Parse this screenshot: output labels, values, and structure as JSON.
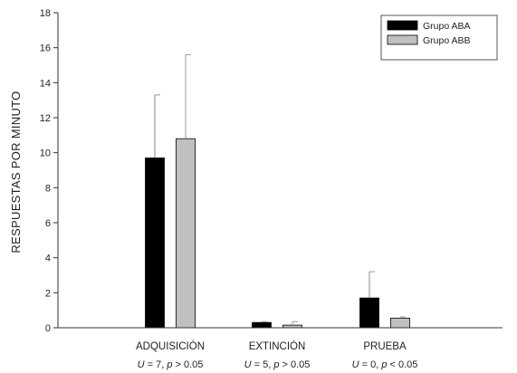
{
  "chart_data": {
    "type": "bar",
    "ylabel": "RESPUESTAS POR MINUTO",
    "ylim": [
      0,
      18
    ],
    "yticks": [
      0,
      2,
      4,
      6,
      8,
      10,
      12,
      14,
      16,
      18
    ],
    "categories": [
      "ADQUISICIÓN",
      "EXTINCIÓN",
      "PRUEBA"
    ],
    "stats": [
      {
        "stat": "U",
        "eq": " = 7, ",
        "p": "p",
        "tail": " > 0.05"
      },
      {
        "stat": "U",
        "eq": " = 5, ",
        "p": "p",
        "tail": " > 0.05"
      },
      {
        "stat": "U",
        "eq": " = 0, ",
        "p": "p",
        "tail": " < 0.05"
      }
    ],
    "series": [
      {
        "name": "Grupo ABA",
        "color": "#000000",
        "values": [
          9.7,
          0.3,
          1.7
        ],
        "errors": [
          3.6,
          0.05,
          1.5
        ]
      },
      {
        "name": "Grupo ABB",
        "color": "#c0c0c0",
        "values": [
          10.8,
          0.15,
          0.55
        ],
        "errors": [
          4.8,
          0.2,
          0.07
        ]
      }
    ],
    "legend_position": "top-right",
    "grid": false
  }
}
